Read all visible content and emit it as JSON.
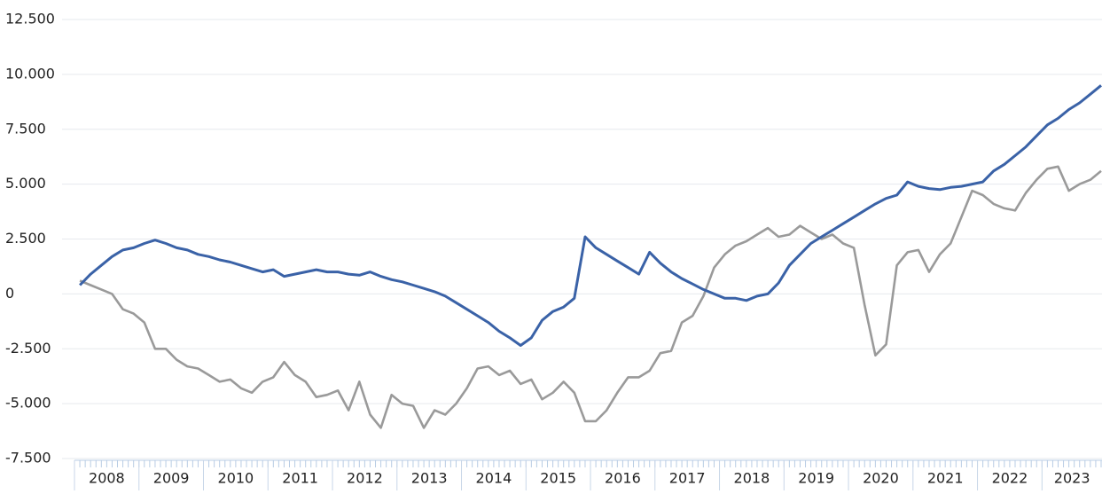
{
  "chart_data": {
    "type": "line",
    "categories": [
      "2008",
      null,
      null,
      null,
      null,
      null,
      "2009",
      null,
      null,
      null,
      null,
      null,
      "2010",
      null,
      null,
      null,
      null,
      null,
      "2011",
      null,
      null,
      null,
      null,
      null,
      "2012",
      null,
      null,
      null,
      null,
      null,
      "2013",
      null,
      null,
      null,
      null,
      null,
      "2014",
      null,
      null,
      null,
      null,
      null,
      "2015",
      null,
      null,
      null,
      null,
      null,
      "2016",
      null,
      null,
      null,
      null,
      null,
      "2017",
      null,
      null,
      null,
      null,
      null,
      "2018",
      null,
      null,
      null,
      null,
      null,
      "2019",
      null,
      null,
      null,
      null,
      null,
      "2020",
      null,
      null,
      null,
      null,
      null,
      "2021",
      null,
      null,
      null,
      null,
      null,
      "2022",
      null,
      null,
      null,
      null,
      null,
      "2023",
      null,
      null,
      null,
      null,
      null
    ],
    "series": [
      {
        "color": "#3a62a7",
        "values": [
          400,
          900,
          1300,
          1700,
          2000,
          2100,
          2300,
          2450,
          2300,
          2100,
          2000,
          1800,
          1700,
          1550,
          1450,
          1300,
          1150,
          1000,
          1100,
          800,
          900,
          1000,
          1100,
          1000,
          1000,
          900,
          850,
          1000,
          800,
          650,
          550,
          400,
          250,
          100,
          -100,
          -400,
          -700,
          -1000,
          -1300,
          -1700,
          -2000,
          -2350,
          -2000,
          -1200,
          -800,
          -600,
          -200,
          2600,
          2100,
          1800,
          1500,
          1200,
          900,
          1900,
          1400,
          1000,
          700,
          450,
          200,
          0,
          -200,
          -200,
          -300,
          -100,
          0,
          500,
          1300,
          1800,
          2300,
          2600,
          2900,
          3200,
          3500,
          3800,
          4100,
          4350,
          4500,
          5100,
          4900,
          4800,
          4750,
          4850,
          4900,
          5000,
          5100,
          5600,
          5900,
          6300,
          6700,
          7200,
          7700,
          8000,
          8400,
          8700,
          9100,
          9500
        ]
      },
      {
        "color": "#9a9a9a",
        "values": [
          600,
          400,
          200,
          0,
          -700,
          -900,
          -1300,
          -2500,
          -2500,
          -3000,
          -3300,
          -3400,
          -3700,
          -4000,
          -3900,
          -4300,
          -4500,
          -4000,
          -3800,
          -3100,
          -3700,
          -4000,
          -4700,
          -4600,
          -4400,
          -5300,
          -4000,
          -5500,
          -6100,
          -4600,
          -5000,
          -5100,
          -6100,
          -5300,
          -5500,
          -5000,
          -4300,
          -3400,
          -3300,
          -3700,
          -3500,
          -4100,
          -3900,
          -4800,
          -4500,
          -4000,
          -4500,
          -5800,
          -5800,
          -5300,
          -4500,
          -3800,
          -3800,
          -3500,
          -2700,
          -2600,
          -1300,
          -1000,
          -100,
          1200,
          1800,
          2200,
          2400,
          2700,
          3000,
          2600,
          2700,
          3100,
          2800,
          2500,
          2700,
          2300,
          2100,
          -500,
          -2800,
          -2300,
          1300,
          1900,
          2000,
          1000,
          1800,
          2300,
          3500,
          4700,
          4500,
          4100,
          3900,
          3800,
          4600,
          5200,
          5700,
          5800,
          4700,
          5000,
          5200,
          5600
        ]
      }
    ],
    "ylim": [
      -7500,
      12500
    ],
    "yticks": [
      {
        "value": -7500,
        "label": "-7.500"
      },
      {
        "value": -5000,
        "label": "-5.000"
      },
      {
        "value": -2500,
        "label": "-2.500"
      },
      0,
      {
        "value": 2500,
        "label": "2.500"
      },
      {
        "value": 5000,
        "label": "5.000"
      },
      {
        "value": 7500,
        "label": "7.500"
      },
      {
        "value": 10000,
        "label": "10.000"
      },
      {
        "value": 12500,
        "label": "12.500"
      }
    ],
    "grid": true
  }
}
